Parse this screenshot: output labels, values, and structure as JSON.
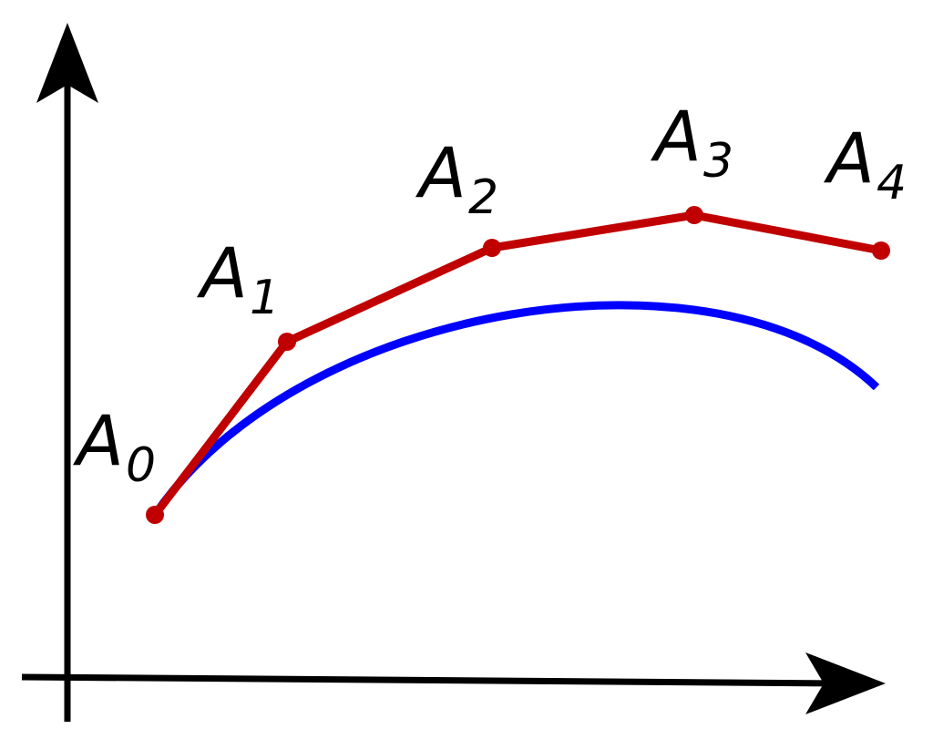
{
  "diagram": {
    "points": [
      {
        "letter": "A",
        "subscript": "0"
      },
      {
        "letter": "A",
        "subscript": "1"
      },
      {
        "letter": "A",
        "subscript": "2"
      },
      {
        "letter": "A",
        "subscript": "3"
      },
      {
        "letter": "A",
        "subscript": "4"
      }
    ],
    "colors": {
      "axes": "#000000",
      "polyline": "#c00000",
      "curve": "#0000ff"
    }
  }
}
